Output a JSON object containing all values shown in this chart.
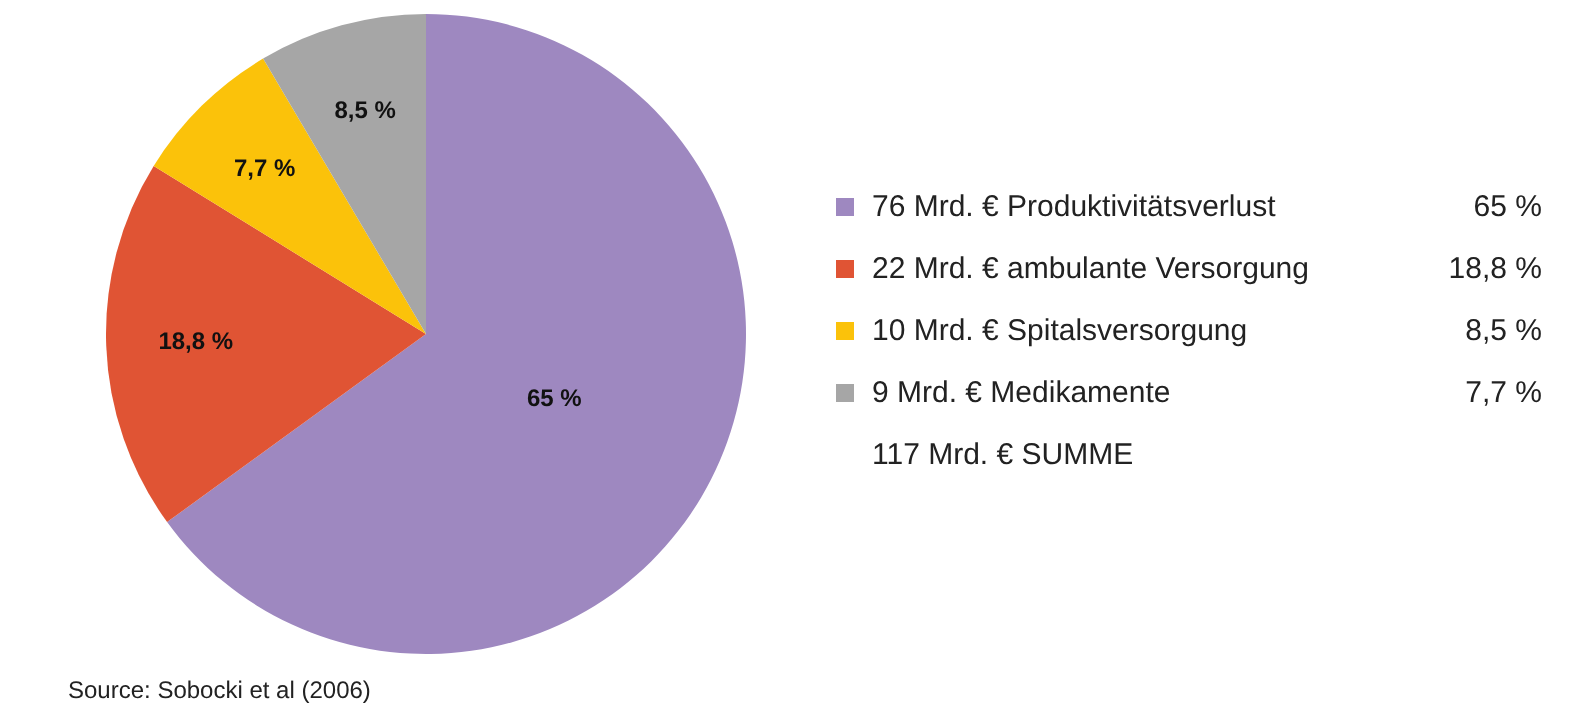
{
  "chart_data": {
    "type": "pie",
    "categories": [
      "76 Mrd. € Produktivitätsverlust",
      "22 Mrd. € ambulante Versorgung",
      "10 Mrd. € Spitalsversorgung",
      "9 Mrd. € Medikamente"
    ],
    "values": [
      65,
      18.8,
      7.7,
      8.5
    ],
    "colors": [
      "#9e88c0",
      "#e05434",
      "#fbc20a",
      "#a6a6a6"
    ],
    "value_labels": [
      "65 %",
      "18,8 %",
      "7,7 %",
      "8,5 %"
    ],
    "legend": "right",
    "annotations": [
      "65 %",
      "18,8 %",
      "8,5 %",
      "7,7 %",
      "117 Mrd. € SUMME",
      "Source: Sobocki et al (2006)"
    ]
  }
}
